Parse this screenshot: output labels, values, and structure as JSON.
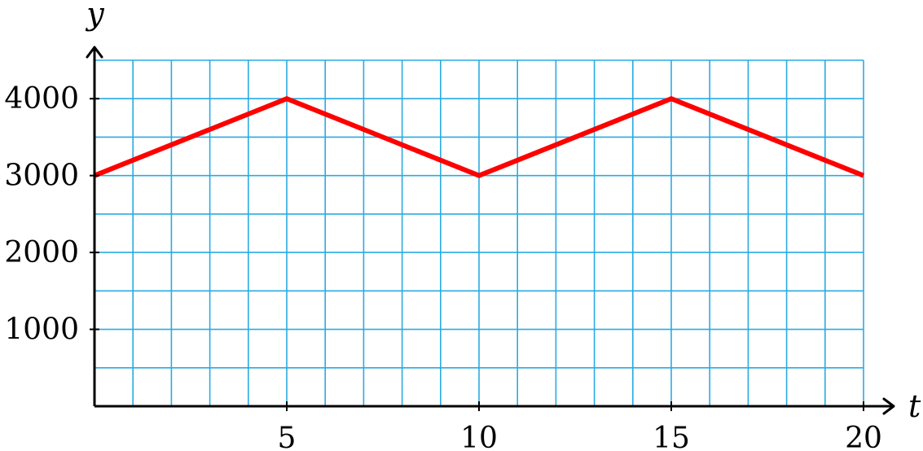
{
  "chart_data": {
    "type": "line",
    "xlabel": "t",
    "ylabel": "y",
    "xlim": [
      0,
      20
    ],
    "ylim": [
      0,
      4500
    ],
    "grid": true,
    "x_grid_step": 1,
    "y_grid_step": 500,
    "x_ticks": [
      5,
      10,
      15,
      20
    ],
    "y_ticks": [
      1000,
      2000,
      3000,
      4000
    ],
    "x_tick_labels": [
      "5",
      "10",
      "15",
      "20"
    ],
    "y_tick_labels": [
      "1000",
      "2000",
      "3000",
      "4000"
    ],
    "series": [
      {
        "color": "#ff0000",
        "x": [
          0,
          5,
          10,
          15,
          20
        ],
        "y": [
          3000,
          4000,
          3000,
          4000,
          3000
        ]
      }
    ],
    "grid_color": "#29abe2"
  }
}
